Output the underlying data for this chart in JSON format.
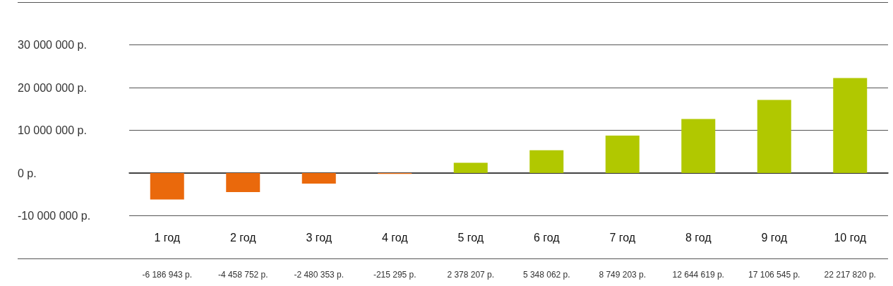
{
  "chart_data": {
    "type": "bar",
    "categories": [
      "1 год",
      "2 год",
      "3 год",
      "4 год",
      "5 год",
      "6 год",
      "7 год",
      "8 год",
      "9 год",
      "10 год"
    ],
    "values": [
      -6186943,
      -4458752,
      -2480353,
      -215295,
      2378207,
      5348062,
      8749203,
      12644619,
      17106545,
      22217820
    ],
    "value_labels": [
      "-6 186 943 р.",
      "-4 458 752 р.",
      "-2 480 353 р.",
      "-215 295 р.",
      "2 378 207 р.",
      "5 348 062 р.",
      "8 749 203 р.",
      "12 644 619 р.",
      "17 106 545 р.",
      "22 217 820 р."
    ],
    "colors": [
      "#ea690c",
      "#ea690c",
      "#ea690c",
      "#ea690c",
      "#b1c800",
      "#b1c800",
      "#b1c800",
      "#b1c800",
      "#b1c800",
      "#b1c800"
    ],
    "ylim": [
      -20000000,
      40000000
    ],
    "yticks": [
      {
        "value": -20000000,
        "label": null
      },
      {
        "value": -10000000,
        "label": "-10 000 000 р."
      },
      {
        "value": 0,
        "label": "0 р."
      },
      {
        "value": 10000000,
        "label": "10 000 000 р."
      },
      {
        "value": 20000000,
        "label": "20 000 000 р."
      },
      {
        "value": 30000000,
        "label": "30 000 000 р."
      },
      {
        "value": 40000000,
        "label": null
      }
    ],
    "grid": "y"
  }
}
